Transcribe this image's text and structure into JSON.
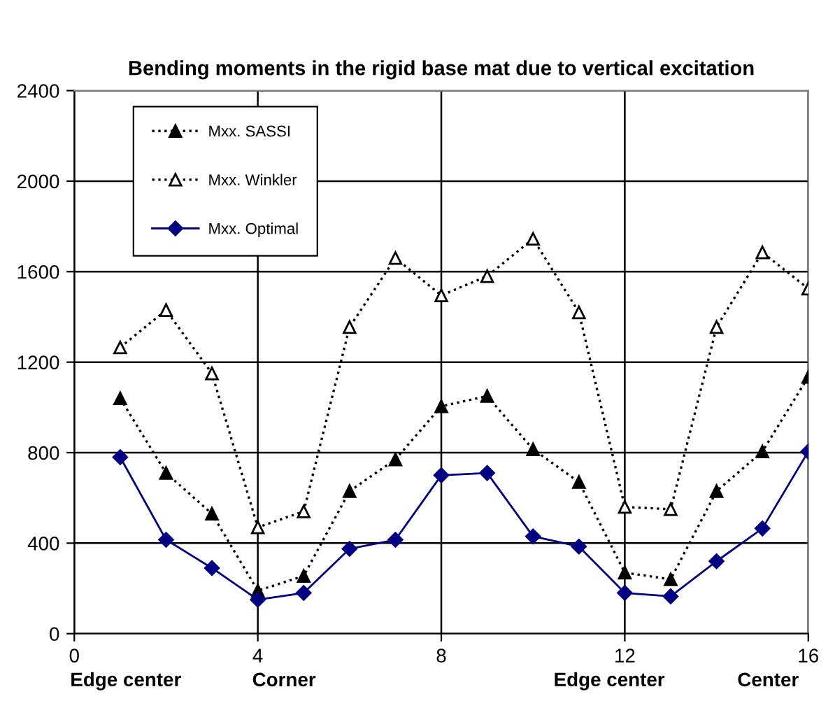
{
  "chart_data": {
    "type": "line",
    "title": "Bending moments in the rigid base mat due to vertical excitation",
    "x": [
      1,
      2,
      3,
      4,
      5,
      6,
      7,
      8,
      9,
      10,
      11,
      12,
      13,
      14,
      15,
      16
    ],
    "series": [
      {
        "name": "Mxx. SASSI",
        "color": "#000000",
        "marker": "triangle",
        "line_style": "dotted",
        "values": [
          1040,
          710,
          530,
          190,
          255,
          630,
          770,
          1005,
          1050,
          815,
          670,
          270,
          240,
          630,
          805,
          1135
        ]
      },
      {
        "name": "Mxx. Winkler",
        "color": "#000000",
        "marker": "triangle",
        "line_style": "dotted",
        "values": [
          1265,
          1430,
          1150,
          470,
          540,
          1355,
          1660,
          1495,
          1580,
          1745,
          1420,
          560,
          550,
          1355,
          1685,
          1525
        ]
      },
      {
        "name": "Mxx. Optimal",
        "color": "#000080",
        "marker": "diamond",
        "line_style": "solid",
        "values": [
          780,
          415,
          290,
          150,
          180,
          375,
          415,
          700,
          710,
          430,
          385,
          180,
          165,
          320,
          465,
          805
        ]
      }
    ],
    "xlim": [
      0,
      16
    ],
    "xticks": [
      0,
      4,
      8,
      12,
      16
    ],
    "ylim": [
      0,
      2400
    ],
    "yticks": [
      0,
      400,
      800,
      1200,
      1600,
      2000,
      2400
    ],
    "grid": true,
    "legend": "top left",
    "annotations": [
      "Edge center",
      "Corner",
      "Edge center",
      "Center"
    ]
  }
}
